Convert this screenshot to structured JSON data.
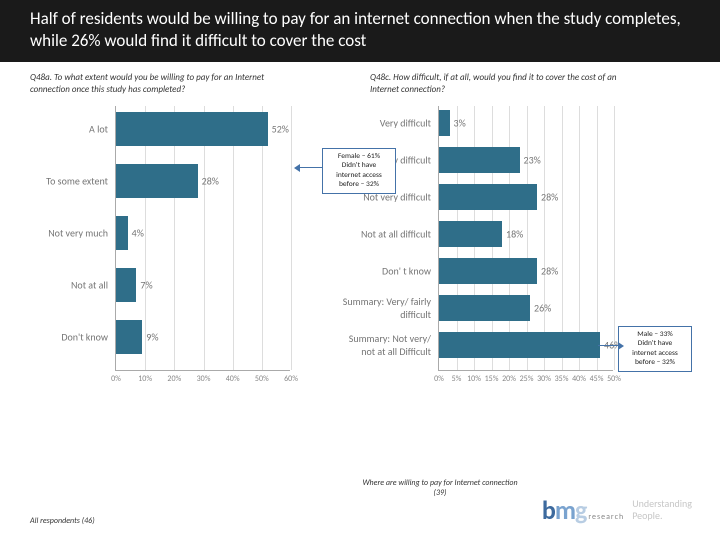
{
  "title": "Half of residents would be willing to pay for an internet connection when the study completes, while 26% would find it difficult to cover the cost",
  "question_left": "Q48a. To what extent would you be willing to pay for an Internet connection once this study has completed?",
  "question_right": "Q48c. How difficult, if at all, would you find it to cover the cost of an Internet connection?",
  "chart_left": {
    "type": "bar-horizontal",
    "xmax_pct": 60,
    "xtick_step": 10,
    "xticks": [
      "0%",
      "10%",
      "20%",
      "30%",
      "40%",
      "50%",
      "60%"
    ],
    "bar_color": "#2f6e89",
    "label_color": "#757575",
    "grid_color": "#dddddd",
    "bars": [
      {
        "label": "A lot",
        "value": 52
      },
      {
        "label": "To some extent",
        "value": 28
      },
      {
        "label": "Not very much",
        "value": 4
      },
      {
        "label": "Not at all",
        "value": 7
      },
      {
        "label": "Don't know",
        "value": 9
      }
    ]
  },
  "chart_right": {
    "type": "bar-horizontal",
    "xmax_pct": 50,
    "xtick_step": 5,
    "xticks": [
      "0%",
      "5%",
      "10%",
      "15%",
      "20%",
      "25%",
      "30%",
      "35%",
      "40%",
      "45%",
      "50%"
    ],
    "bar_color": "#2f6e89",
    "label_color": "#757575",
    "grid_color": "#dddddd",
    "bars": [
      {
        "label": "Very difficult",
        "value": 3
      },
      {
        "label": "Fairly difficult",
        "value": 23
      },
      {
        "label": "Not very difficult",
        "value": 28
      },
      {
        "label": "Not at all difficult",
        "value": 18
      },
      {
        "label": "Don' t know",
        "value": 28
      },
      {
        "label": "Summary: Very/ fairly difficult",
        "value": 26
      },
      {
        "label": "Summary: Not very/ not at all Difficult",
        "value": 46
      }
    ]
  },
  "callout_left": {
    "lines": [
      "Female – 61%",
      "Didn't have",
      "internet access",
      "before –  32%"
    ]
  },
  "callout_right": {
    "lines": [
      "Male –  33%",
      "Didn't have",
      "internet access",
      "before –  32%"
    ]
  },
  "foot_left": "All respondents (46)",
  "foot_mid": "Where are willing to pay for Internet connection (39)",
  "logo": {
    "b": "b",
    "m": "m",
    "g": "g",
    "sub": "research",
    "tag1": "Understanding",
    "tag2": "People."
  }
}
